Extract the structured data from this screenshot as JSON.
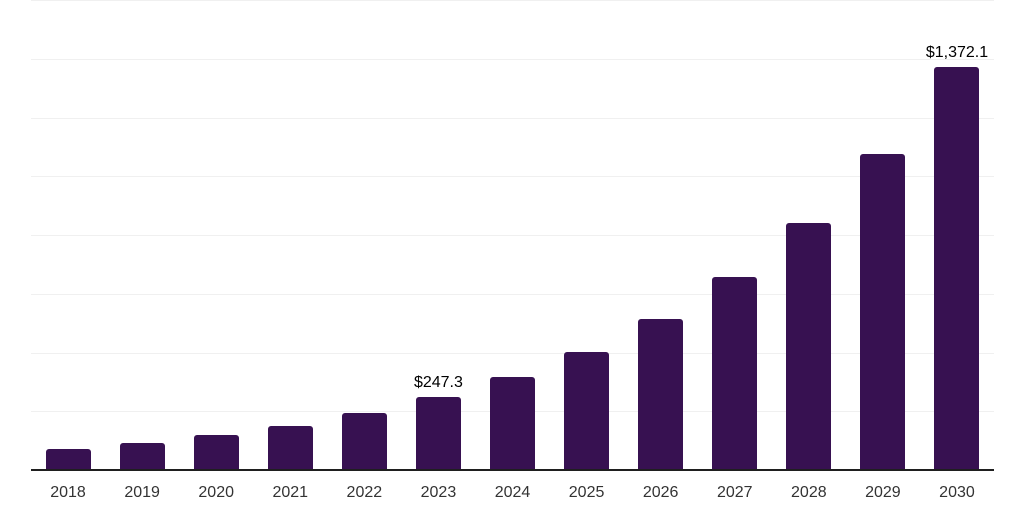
{
  "chart_data": {
    "type": "bar",
    "title": "",
    "xlabel": "",
    "ylabel": "",
    "categories": [
      "2018",
      "2019",
      "2020",
      "2021",
      "2022",
      "2023",
      "2024",
      "2025",
      "2026",
      "2027",
      "2028",
      "2029",
      "2030"
    ],
    "values": [
      72.7,
      92.9,
      118.6,
      151.6,
      193.6,
      247.3,
      315.9,
      403.5,
      515.4,
      658.4,
      841.0,
      1074.3,
      1372.1
    ],
    "value_labels_shown": {
      "2023": "$247.3",
      "2030": "$1,372.1"
    },
    "ylim": [
      0,
      1600
    ],
    "gridline_step": 200,
    "grid": "horizontal",
    "legend": false,
    "y_tick_labels_shown": false,
    "colors": {
      "bar": "#371151",
      "axis": "#1f1f1f",
      "gridline": "#f0f0f0",
      "tick_label": "#333333",
      "data_label": "#000000",
      "background": "#ffffff"
    }
  }
}
